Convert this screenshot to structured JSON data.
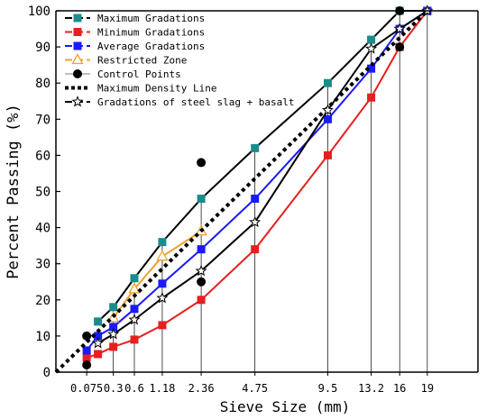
{
  "chart_data": {
    "type": "line",
    "xlabel": "Sieve Size (mm)",
    "ylabel": "Percent Passing (%)",
    "ylim": [
      0,
      100
    ],
    "y_ticks": [
      0,
      10,
      20,
      30,
      40,
      50,
      60,
      70,
      80,
      90,
      100
    ],
    "x_axis_scale": "power 0.45",
    "x_ticks": [
      {
        "value": 0.075,
        "label": "0.075"
      },
      {
        "value": 0.3,
        "label": "0.3"
      },
      {
        "value": 0.6,
        "label": "0.6"
      },
      {
        "value": 1.18,
        "label": "1.18"
      },
      {
        "value": 2.36,
        "label": "2.36"
      },
      {
        "value": 4.75,
        "label": "4.75"
      },
      {
        "value": 9.5,
        "label": "9.5"
      },
      {
        "value": 13.2,
        "label": "13.2"
      },
      {
        "value": 16,
        "label": "16"
      },
      {
        "value": 19,
        "label": "19"
      }
    ],
    "grid": "vertical drop lines at sieve sizes",
    "legend_position": "top-left",
    "series": [
      {
        "name": "Maximum Gradations",
        "color": "#000000",
        "marker": "square",
        "marker_color": "#1a8c8c",
        "dash": "solid",
        "points": [
          [
            0.15,
            14
          ],
          [
            0.3,
            18
          ],
          [
            0.6,
            26
          ],
          [
            1.18,
            36
          ],
          [
            2.36,
            48
          ],
          [
            4.75,
            62
          ],
          [
            9.5,
            80
          ],
          [
            13.2,
            92
          ],
          [
            16,
            100
          ],
          [
            19,
            100
          ]
        ]
      },
      {
        "name": "Minimum Gradations",
        "color": "#e81f1f",
        "marker": "square",
        "marker_color": "#e81f1f",
        "dash": "solid",
        "points": [
          [
            0.075,
            4
          ],
          [
            0.15,
            5
          ],
          [
            0.3,
            7
          ],
          [
            0.6,
            9
          ],
          [
            1.18,
            13
          ],
          [
            2.36,
            20
          ],
          [
            4.75,
            34
          ],
          [
            9.5,
            60
          ],
          [
            13.2,
            76
          ],
          [
            16,
            90
          ],
          [
            19,
            100
          ]
        ]
      },
      {
        "name": "Average Gradations",
        "color": "#1a1aff",
        "marker": "square",
        "marker_color": "#1a1aff",
        "dash": "solid",
        "points": [
          [
            0.075,
            6
          ],
          [
            0.15,
            10
          ],
          [
            0.3,
            12.5
          ],
          [
            0.6,
            17.5
          ],
          [
            1.18,
            24.5
          ],
          [
            2.36,
            34
          ],
          [
            4.75,
            48
          ],
          [
            9.5,
            70
          ],
          [
            13.2,
            84
          ],
          [
            16,
            95
          ],
          [
            19,
            100
          ]
        ]
      },
      {
        "name": "Restricted Zone",
        "color": "#f0a030",
        "marker": "triangle",
        "marker_color": "#f0a030",
        "dash": "solid",
        "points": [
          [
            0.3,
            15
          ],
          [
            0.6,
            23
          ],
          [
            1.18,
            32
          ],
          [
            2.36,
            39
          ]
        ]
      },
      {
        "name": "Control Points",
        "color": "#000000",
        "marker": "circle",
        "marker_color": "#000000",
        "dash": "none",
        "points": [
          [
            0.075,
            2
          ],
          [
            0.075,
            10
          ],
          [
            2.36,
            25
          ],
          [
            2.36,
            58
          ],
          [
            16,
            90
          ],
          [
            16,
            100
          ]
        ]
      },
      {
        "name": "Maximum Density Line",
        "color": "#000000",
        "marker": "none",
        "dash": "dotted",
        "points": [
          [
            0,
            0
          ],
          [
            19,
            100
          ]
        ]
      },
      {
        "name": "Gradations of steel slag + basalt",
        "color": "#000000",
        "marker": "star",
        "marker_color": "#ffffff",
        "dash": "solid",
        "points": [
          [
            0.15,
            8
          ],
          [
            0.3,
            10.5
          ],
          [
            0.6,
            14.5
          ],
          [
            1.18,
            20.5
          ],
          [
            2.36,
            28
          ],
          [
            4.75,
            41.5
          ],
          [
            9.5,
            72.5
          ],
          [
            13.2,
            89.5
          ],
          [
            16,
            95
          ],
          [
            19,
            100
          ]
        ]
      }
    ]
  }
}
